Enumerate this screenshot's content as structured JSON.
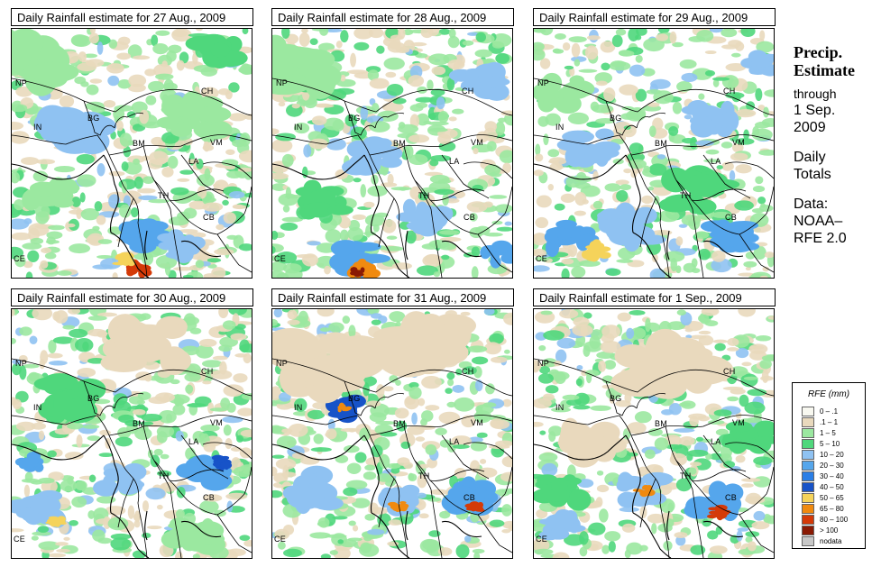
{
  "colors": {
    "lt1": "#f8f8f0",
    "c01_1": "#e9d9bd",
    "c1_5": "#9be8a0",
    "c5_10": "#4fd77c",
    "c10_20": "#8fc2f2",
    "c20_30": "#55a6ec",
    "c30_40": "#2a7ee6",
    "c40_50": "#1753c8",
    "c50_65": "#f5d35a",
    "c65_80": "#f08a10",
    "c80_100": "#d43a08",
    "c100": "#8a1a04",
    "nodata": "#c8c8c8",
    "ocean": "#ffffff"
  },
  "panels": [
    {
      "title": "Daily Rainfall estimate for  27 Aug., 2009",
      "icons": [
        "rainfall-map"
      ]
    },
    {
      "title": "Daily Rainfall estimate for  28 Aug., 2009",
      "icons": [
        "rainfall-map"
      ]
    },
    {
      "title": "Daily Rainfall estimate for  29 Aug., 2009",
      "icons": [
        "rainfall-map"
      ]
    },
    {
      "title": "Daily Rainfall estimate for  30 Aug., 2009",
      "icons": [
        "rainfall-map"
      ]
    },
    {
      "title": "Daily Rainfall estimate for  31 Aug., 2009",
      "icons": [
        "rainfall-map"
      ]
    },
    {
      "title": "Daily Rainfall estimate for  1 Sep., 2009",
      "icons": [
        "rainfall-map"
      ]
    }
  ],
  "country_labels": {
    "np": "NP",
    "ch": "CH",
    "in": "IN",
    "bg": "BG",
    "bm": "BM",
    "vm": "VM",
    "la": "LA",
    "th": "TH",
    "cb": "CB",
    "ce": "CE"
  },
  "sidebar": {
    "heading1": "Precip.",
    "heading2": "Estimate",
    "through": "through",
    "date1": "1 Sep.",
    "date2": "2009",
    "daily1": "Daily",
    "daily2": "Totals",
    "data1": "Data:",
    "data2": "NOAA–",
    "data3": "RFE 2.0"
  },
  "legend": {
    "title": "RFE (mm)",
    "items": [
      {
        "label": "0 – .1",
        "color_key": "lt1"
      },
      {
        "label": ".1 – 1",
        "color_key": "c01_1"
      },
      {
        "label": "1 – 5",
        "color_key": "c1_5"
      },
      {
        "label": "5 – 10",
        "color_key": "c5_10"
      },
      {
        "label": "10 – 20",
        "color_key": "c10_20"
      },
      {
        "label": "20 – 30",
        "color_key": "c20_30"
      },
      {
        "label": "30 – 40",
        "color_key": "c30_40"
      },
      {
        "label": "40 – 50",
        "color_key": "c40_50"
      },
      {
        "label": "50 – 65",
        "color_key": "c50_65"
      },
      {
        "label": "65 – 80",
        "color_key": "c65_80"
      },
      {
        "label": "80 – 100",
        "color_key": "c80_100"
      },
      {
        "label": "> 100",
        "color_key": "c100"
      },
      {
        "label": "nodata",
        "color_key": "nodata"
      }
    ]
  }
}
